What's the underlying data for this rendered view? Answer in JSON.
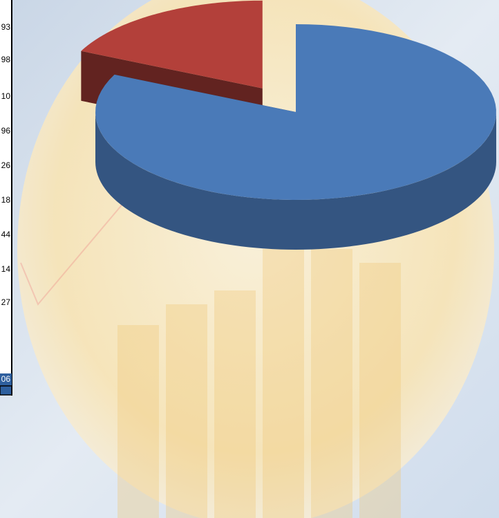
{
  "chart_data": {
    "type": "pie",
    "values": [
      82,
      18
    ],
    "colors": [
      "#4a7ab8",
      "#b3403a"
    ],
    "explode": [
      0,
      1
    ]
  },
  "table": {
    "cells": [
      "93",
      "98",
      "10",
      "96",
      "26",
      "18",
      "44",
      "14",
      "27",
      "06"
    ]
  }
}
